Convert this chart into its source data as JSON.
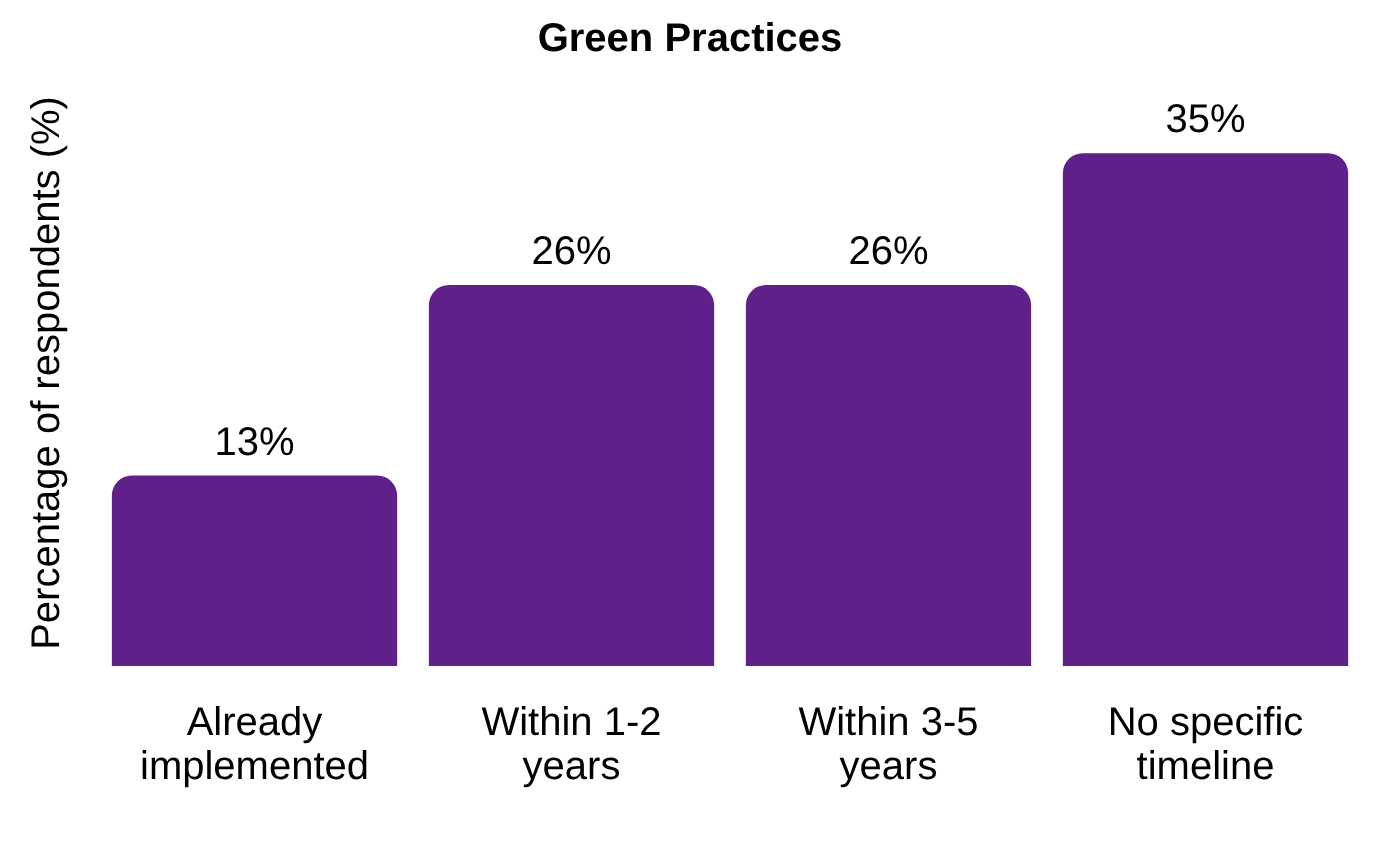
{
  "chart_data": {
    "type": "bar",
    "title": "Green Practices",
    "ylabel": "Percentage of respondents (%)",
    "categories": [
      "Already implemented",
      "Within 1-2 years",
      "Within 3-5 years",
      "No specific timeline"
    ],
    "values": [
      13,
      26,
      26,
      35
    ],
    "color": "#5f2189",
    "value_labels": [
      "13%",
      "26%",
      "26%",
      "35%"
    ],
    "grid": false,
    "legend": false
  }
}
